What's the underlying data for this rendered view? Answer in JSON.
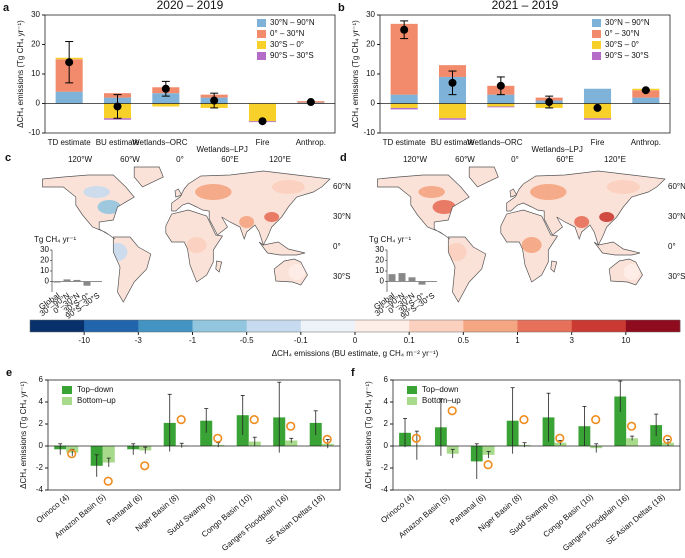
{
  "chart_data": [
    {
      "panel": "a",
      "type": "stacked_bar",
      "title": "2020 – 2019",
      "ylabel": "ΔCH₄ emissions (Tg CH₄ yr⁻¹)",
      "categories": [
        "TD estimate",
        "BU estimate",
        "Wetlands–ORC",
        "Wetlands–LPJ",
        "Fire",
        "Anthrop."
      ],
      "series": [
        {
          "name": "30°N – 90°N",
          "color": "#7fb2d8",
          "values": [
            4,
            2,
            3.5,
            2,
            0,
            0.3
          ]
        },
        {
          "name": "0° – 30°N",
          "color": "#f28a6c",
          "values": [
            11,
            1.5,
            2,
            1,
            0,
            0.5
          ]
        },
        {
          "name": "30°S – 0°",
          "color": "#f7d12a",
          "values": [
            0.5,
            -5,
            -1,
            -1.5,
            -6,
            0
          ]
        },
        {
          "name": "90°S – 30°S",
          "color": "#b46cc8",
          "values": [
            0,
            -0.5,
            0,
            0,
            -0.3,
            0
          ]
        }
      ],
      "points": {
        "color": "#000000",
        "values": [
          14,
          -1,
          5,
          1,
          -6,
          0.5
        ],
        "errors": [
          7,
          4,
          2.5,
          2.5,
          0,
          0
        ]
      },
      "ylim": [
        -10,
        30
      ],
      "yticks": [
        -10,
        0,
        10,
        20,
        30
      ],
      "legend": "upper right"
    },
    {
      "panel": "b",
      "type": "stacked_bar",
      "title": "2021 – 2019",
      "ylabel": "ΔCH₄ emissions (Tg CH₄ yr⁻¹)",
      "categories": [
        "TD estimate",
        "BU estimate",
        "Wetlands–ORC",
        "Wetlands–LPJ",
        "Fire",
        "Anthrop."
      ],
      "series": [
        {
          "name": "30°N – 90°N",
          "color": "#7fb2d8",
          "values": [
            3,
            9,
            3,
            1,
            5,
            2
          ]
        },
        {
          "name": "0° – 30°N",
          "color": "#f28a6c",
          "values": [
            24,
            4,
            3,
            1,
            0,
            2.5
          ]
        },
        {
          "name": "30°S – 0°",
          "color": "#f7d12a",
          "values": [
            -1.5,
            -5,
            -1,
            -1.5,
            -5,
            0.5
          ]
        },
        {
          "name": "90°S – 30°S",
          "color": "#b46cc8",
          "values": [
            -0.5,
            -0.5,
            -0.3,
            0,
            -0.5,
            0
          ]
        }
      ],
      "points": {
        "color": "#000000",
        "values": [
          25,
          7,
          6,
          0.5,
          -1.5,
          4.5
        ],
        "errors": [
          3,
          4,
          3,
          2,
          0,
          0
        ]
      },
      "ylim": [
        -10,
        30
      ],
      "yticks": [
        -10,
        0,
        10,
        20,
        30
      ],
      "legend": "upper right"
    },
    {
      "panel": "c",
      "type": "map",
      "lon_labels": [
        "120°W",
        "60°W",
        "0°",
        "60°E",
        "120°E"
      ],
      "lat_labels": [
        "60°N",
        "30°N",
        "0°",
        "30°S"
      ],
      "inset": {
        "type": "bar",
        "ylabel": "Tg CH₄ yr⁻¹",
        "categories": [
          "Global",
          "30°–90°N",
          "0°–30°N",
          "30°S–0°",
          "90°S–30°S"
        ],
        "values": [
          -1,
          2,
          1.5,
          -4,
          -0.5
        ],
        "color": "#888888",
        "ylim": [
          -10,
          30
        ],
        "yticks": [
          0,
          10,
          20,
          30
        ]
      }
    },
    {
      "panel": "d",
      "type": "map",
      "lon_labels": [
        "120°W",
        "60°W",
        "0°",
        "60°E",
        "120°E"
      ],
      "lat_labels": [
        "60°N",
        "30°N",
        "0°",
        "30°S"
      ],
      "inset": {
        "type": "bar",
        "ylabel": "Tg CH₄ yr⁻¹",
        "categories": [
          "Global",
          "30°–90°N",
          "0°–30°N",
          "30°S–0°",
          "90°S–30°S"
        ],
        "values": [
          7,
          8,
          4,
          -3,
          -0.5
        ],
        "color": "#888888",
        "ylim": [
          -10,
          30
        ],
        "yticks": [
          0,
          10,
          20,
          30
        ]
      }
    },
    {
      "panel": "e",
      "type": "grouped_bar",
      "ylabel": "ΔCH₄ emissions (Tg CH₄ yr⁻¹)",
      "categories": [
        "Orinoco (4)",
        "Amazon Basin (5)",
        "Pantanal (6)",
        "Niger Basin (8)",
        "Sudd Swamp (9)",
        "Congo Basin (10)",
        "Ganges Floodplain (16)",
        "SE Asian Deltas (18)"
      ],
      "series": [
        {
          "name": "Top–down",
          "color": "#3aa335",
          "values": [
            -0.3,
            -1.8,
            -0.3,
            2.1,
            2.3,
            2.8,
            2.6,
            2.1
          ],
          "errors": [
            0.5,
            1.0,
            0.5,
            2.6,
            1.1,
            1.8,
            3.2,
            1.1
          ]
        },
        {
          "name": "Bottom–up",
          "color": "#a8da8c",
          "values": [
            -0.6,
            -1.5,
            -0.4,
            0.05,
            0.1,
            0.4,
            0.5,
            0.2
          ],
          "errors": [
            0.3,
            0.4,
            0.3,
            0.2,
            0.2,
            0.4,
            0.2,
            0.4
          ]
        }
      ],
      "markers": {
        "color": "#f08c1e",
        "values": [
          -0.7,
          -3.2,
          -1.8,
          2.4,
          0.7,
          2.4,
          1.8,
          0.6
        ]
      },
      "ylim": [
        -4,
        6
      ],
      "yticks": [
        -4,
        -2,
        0,
        2,
        4,
        6
      ],
      "legend": "upper left"
    },
    {
      "panel": "f",
      "type": "grouped_bar",
      "ylabel": "ΔCH₄ emissions (Tg CH₄ yr⁻¹)",
      "categories": [
        "Orinoco (4)",
        "Amazon Basin (5)",
        "Pantanal (6)",
        "Niger Basin (8)",
        "Sudd Swamp (9)",
        "Congo Basin (10)",
        "Ganges Floodplain (16)",
        "SE Asian Deltas (18)"
      ],
      "series": [
        {
          "name": "Top–down",
          "color": "#3aa335",
          "values": [
            1.2,
            1.7,
            -1.4,
            2.3,
            2.6,
            1.8,
            4.5,
            1.9
          ],
          "errors": [
            1.3,
            2.6,
            1.6,
            3.0,
            2.2,
            1.8,
            1.4,
            1.0
          ]
        },
        {
          "name": "Bottom–up",
          "color": "#a8da8c",
          "values": [
            0.05,
            -0.7,
            -0.8,
            0.1,
            0.3,
            -0.2,
            0.7,
            0.3
          ],
          "errors": [
            1.3,
            0.4,
            0.3,
            0.2,
            0.2,
            0.4,
            0.2,
            0.3
          ]
        }
      ],
      "markers": {
        "color": "#f08c1e",
        "values": [
          0.7,
          3.2,
          -1.7,
          2.4,
          0.7,
          2.4,
          1.8,
          0.6
        ]
      },
      "ylim": [
        -4,
        6
      ],
      "yticks": [
        -4,
        -2,
        0,
        2,
        4,
        6
      ],
      "legend": "upper left"
    }
  ],
  "colorbar": {
    "title": "ΔCH₄ emissions (BU estimate, g CH₄ m⁻² yr⁻¹)",
    "ticks": [
      -10,
      -3,
      -1,
      -0.5,
      -0.1,
      0,
      0.1,
      0.5,
      1,
      3,
      10
    ],
    "colors": [
      "#08306b",
      "#2166ac",
      "#4393c3",
      "#92c5de",
      "#c6dbef",
      "#eef3f9",
      "#fdeee8",
      "#fbd0bf",
      "#f4a582",
      "#e7705a",
      "#cb3a32",
      "#8f0c1e"
    ]
  }
}
